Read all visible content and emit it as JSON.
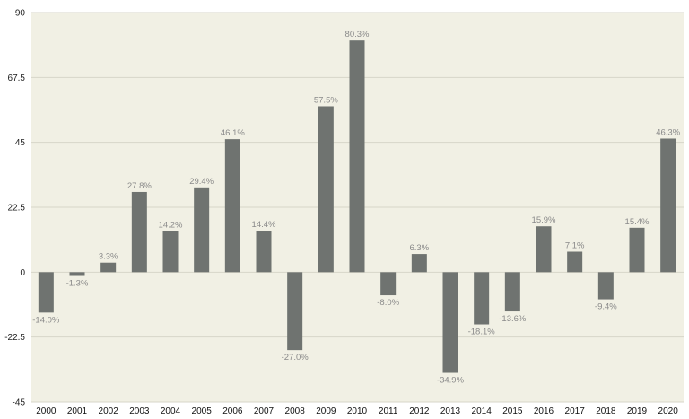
{
  "chart_data": {
    "type": "bar",
    "title": "",
    "xlabel": "",
    "ylabel": "",
    "categories": [
      "2000",
      "2001",
      "2002",
      "2003",
      "2004",
      "2005",
      "2006",
      "2007",
      "2008",
      "2009",
      "2010",
      "2011",
      "2012",
      "2013",
      "2014",
      "2015",
      "2016",
      "2017",
      "2018",
      "2019",
      "2020"
    ],
    "values": [
      -14.0,
      -1.3,
      3.3,
      27.8,
      14.2,
      29.4,
      46.1,
      14.4,
      -27.0,
      57.5,
      80.3,
      -8.0,
      6.3,
      -34.9,
      -18.1,
      -13.6,
      15.9,
      7.1,
      -9.4,
      15.4,
      46.3
    ],
    "data_labels": [
      "-14.0%",
      "-1.3%",
      "3.3%",
      "27.8%",
      "14.2%",
      "29.4%",
      "46.1%",
      "14.4%",
      "-27.0%",
      "57.5%",
      "80.3%",
      "-8.0%",
      "6.3%",
      "-34.9%",
      "-18.1%",
      "-13.6%",
      "15.9%",
      "7.1%",
      "-9.4%",
      "15.4%",
      "46.3%"
    ],
    "yticks": [
      "90",
      "67.5",
      "45",
      "22.5",
      "0",
      "-22.5",
      "-45"
    ],
    "ylim": [
      -45,
      90
    ],
    "grid": true,
    "legend": "none",
    "colors": {
      "bar": "#6f7370",
      "plot_background": "#f1f0e4",
      "grid": "#d7d6c9"
    }
  }
}
